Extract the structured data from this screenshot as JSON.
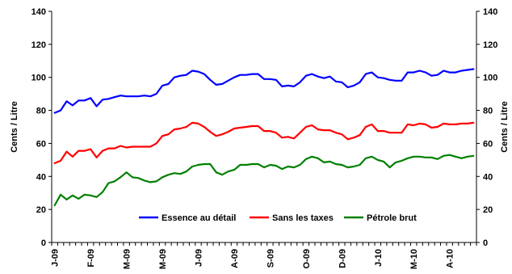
{
  "chart_data": {
    "type": "line",
    "y_label": "Cents / Litre",
    "y_label_right": "Cents / Litre",
    "ylim": [
      0,
      140
    ],
    "yticks": [
      0,
      20,
      40,
      60,
      80,
      100,
      120,
      140
    ],
    "ytick_labels": [
      "0",
      "20",
      "40",
      "60",
      "80",
      "100",
      "120",
      "140"
    ],
    "x_points": 71,
    "x_tick_labels": [
      {
        "index": 0,
        "label": "J-09"
      },
      {
        "index": 6,
        "label": "F-09"
      },
      {
        "index": 12,
        "label": "M-09"
      },
      {
        "index": 18,
        "label": "M-09"
      },
      {
        "index": 24,
        "label": "J-09"
      },
      {
        "index": 30,
        "label": "A-09"
      },
      {
        "index": 36,
        "label": "S-09"
      },
      {
        "index": 42,
        "label": "O-09"
      },
      {
        "index": 48,
        "label": "D-09"
      },
      {
        "index": 54,
        "label": "J-10"
      },
      {
        "index": 60,
        "label": "M-10"
      },
      {
        "index": 66,
        "label": "A-10"
      }
    ],
    "grid": false,
    "legend_position": "bottom",
    "series": [
      {
        "name": "Essence au détail",
        "color": "#0000ff",
        "values": [
          78.5,
          80,
          85.5,
          83,
          86,
          86,
          87.5,
          82.5,
          86.5,
          87,
          88,
          89,
          88.5,
          88.5,
          88.5,
          89,
          88.5,
          90,
          95,
          96,
          100,
          101,
          101.5,
          104,
          103.5,
          102,
          98.5,
          95.5,
          96,
          98,
          100,
          101.5,
          101.5,
          102,
          102,
          99,
          99,
          98.5,
          94.5,
          95,
          94.5,
          97,
          101,
          102,
          100.5,
          99.5,
          100.5,
          97.5,
          97,
          94,
          95,
          97,
          102,
          103,
          100,
          99.5,
          98.5,
          98,
          98,
          103,
          103,
          104,
          103,
          101,
          101.5,
          104,
          103,
          103,
          104,
          104.5,
          105
        ]
      },
      {
        "name": "Sans les taxes",
        "color": "#ff0000",
        "values": [
          48,
          49.5,
          55,
          52,
          55.5,
          55.5,
          56.5,
          51.5,
          55.5,
          57,
          57,
          58.5,
          57.5,
          58,
          58,
          58,
          58,
          60,
          64.5,
          65.5,
          68.5,
          69,
          70,
          72.5,
          72,
          70,
          67,
          64.5,
          65.5,
          67,
          69,
          69.5,
          70,
          70.5,
          70.5,
          67.5,
          67.5,
          66.5,
          63.5,
          64,
          63,
          66.5,
          70,
          71,
          68.5,
          68,
          68,
          66.5,
          65.5,
          62.5,
          63.5,
          65,
          70,
          71.5,
          67.5,
          67.5,
          66.5,
          66.5,
          66.5,
          71.5,
          71,
          72,
          71.5,
          69.5,
          70,
          72,
          71.5,
          71.5,
          72,
          72,
          72.5
        ]
      },
      {
        "name": "Pétrole brut",
        "color": "#008000",
        "values": [
          22.5,
          29,
          26,
          28.5,
          26.5,
          29,
          28.5,
          27.5,
          30.5,
          36,
          37,
          39.5,
          42.5,
          39.5,
          39,
          37.5,
          36.5,
          37,
          39.5,
          41,
          42,
          41.5,
          43,
          46,
          47,
          47.5,
          47.5,
          42.5,
          41,
          43,
          44,
          47,
          47,
          47.5,
          47.5,
          45.5,
          47,
          46.5,
          44.5,
          46,
          45.5,
          47,
          50.5,
          52,
          51,
          48.5,
          49,
          47.5,
          47,
          45.5,
          46,
          47,
          51,
          52,
          50,
          49,
          45.5,
          48.5,
          49.5,
          51,
          52,
          52,
          51.5,
          51.5,
          50.5,
          52.5,
          53,
          52,
          51,
          52,
          52.5
        ]
      }
    ]
  }
}
